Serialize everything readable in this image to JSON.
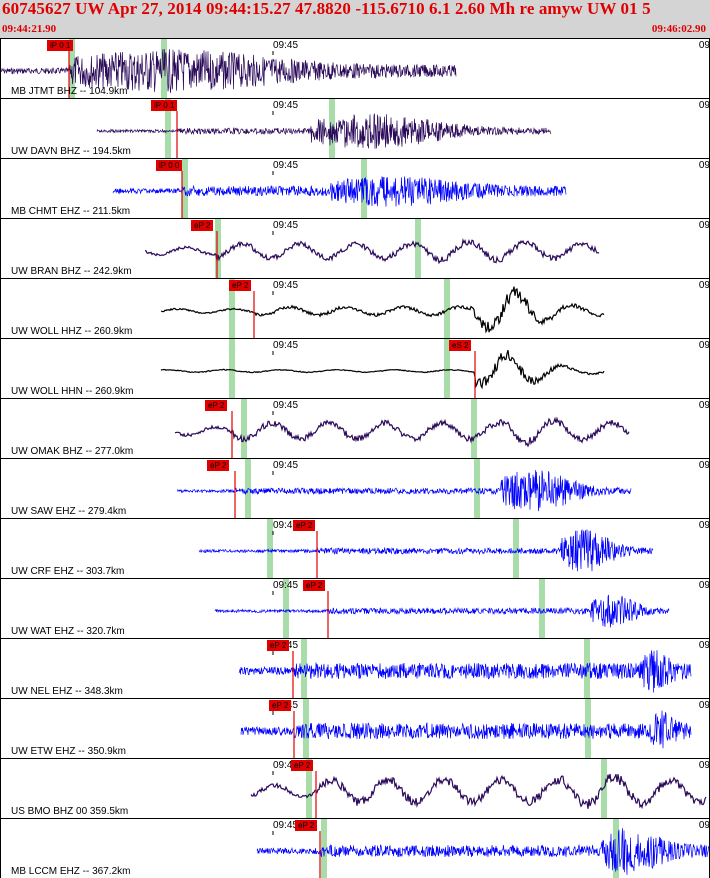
{
  "header": {
    "title": "60745627 UW Apr 27, 2014 09:44:15.27    47.8820 -115.6710  6.1 2.60 Mh re amyw UW 01   5",
    "start_time": "09:44:21.90",
    "end_time": "09:46:02.90"
  },
  "tick_label": "09:45",
  "edge_label": "09",
  "colors": {
    "blue": "#0000ff",
    "purple": "#2b0a5a",
    "black": "#000000",
    "pick": "#e00000",
    "guide": "#a8dca8"
  },
  "traces": [
    {
      "label": "MB JTMT BHZ -- 104.9km",
      "pick": "iP 0 1",
      "color": "purple",
      "tick_label": "09:45"
    },
    {
      "label": "UW DAVN BHZ -- 194.5km",
      "pick": "iP 0 1",
      "color": "purple",
      "tick_label": "09:45"
    },
    {
      "label": "MB CHMT EHZ -- 211.5km",
      "pick": "iP 0 0",
      "color": "blue",
      "tick_label": "09:45"
    },
    {
      "label": "UW BRAN BHZ -- 242.9km",
      "pick": "eP 2",
      "color": "purple",
      "tick_label": "09:45"
    },
    {
      "label": "UW WOLL HHZ -- 260.9km",
      "pick": "eP 2",
      "color": "black",
      "tick_label": "09:45"
    },
    {
      "label": "UW WOLL HHN -- 260.9km",
      "pick": "eS 2",
      "color": "black",
      "tick_label": "09:45"
    },
    {
      "label": "UW OMAK BHZ -- 277.0km",
      "pick": "eP 2",
      "color": "purple",
      "tick_label": "09:45"
    },
    {
      "label": "UW SAW EHZ -- 279.4km",
      "pick": "eP 2",
      "color": "blue",
      "tick_label": "09:45"
    },
    {
      "label": "UW CRF EHZ -- 303.7km",
      "pick": "eP 2",
      "color": "blue",
      "tick_label": "09:45"
    },
    {
      "label": "UW WAT EHZ -- 320.7km",
      "pick": "eP 2",
      "color": "blue",
      "tick_label": "09:45"
    },
    {
      "label": "UW NEL EHZ -- 348.3km",
      "pick": "eP 2",
      "color": "blue",
      "tick_label": "09:45"
    },
    {
      "label": "UW ETW EHZ -- 350.9km",
      "pick": "eP 2",
      "color": "blue",
      "tick_label": "09:45"
    },
    {
      "label": "US BMO BHZ 00 359.5km",
      "pick": "eP 2",
      "color": "purple",
      "tick_label": "09:45"
    },
    {
      "label": "MB LCCM EHZ -- 367.2km",
      "pick": "eP 2",
      "color": "blue",
      "tick_label": "09:45"
    }
  ]
}
